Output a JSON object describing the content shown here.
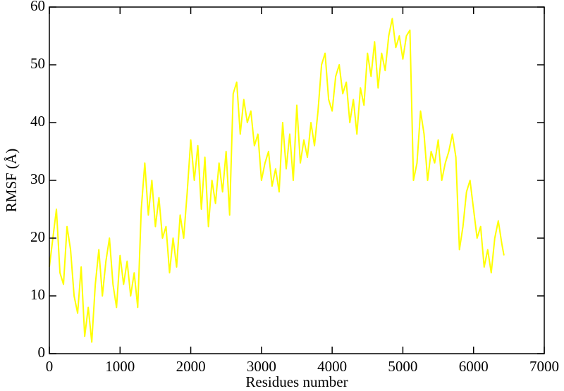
{
  "chart_data": {
    "type": "line",
    "x_label": "Residues number",
    "y_label": "RMSF (Å)",
    "x": [
      0,
      50,
      100,
      150,
      200,
      250,
      300,
      350,
      400,
      450,
      500,
      550,
      600,
      650,
      700,
      750,
      800,
      850,
      900,
      950,
      1000,
      1050,
      1100,
      1150,
      1200,
      1250,
      1300,
      1350,
      1400,
      1450,
      1500,
      1550,
      1600,
      1650,
      1700,
      1750,
      1800,
      1850,
      1900,
      1950,
      2000,
      2050,
      2100,
      2150,
      2200,
      2250,
      2300,
      2350,
      2400,
      2450,
      2500,
      2550,
      2600,
      2650,
      2700,
      2750,
      2800,
      2850,
      2900,
      2950,
      3000,
      3050,
      3100,
      3150,
      3200,
      3250,
      3300,
      3350,
      3400,
      3450,
      3500,
      3550,
      3600,
      3650,
      3700,
      3750,
      3800,
      3850,
      3900,
      3950,
      4000,
      4050,
      4100,
      4150,
      4200,
      4250,
      4300,
      4350,
      4400,
      4450,
      4500,
      4550,
      4600,
      4650,
      4700,
      4750,
      4800,
      4850,
      4900,
      4950,
      5000,
      5050,
      5100,
      5150,
      5200,
      5250,
      5300,
      5350,
      5400,
      5450,
      5500,
      5550,
      5600,
      5650,
      5700,
      5750,
      5800,
      5850,
      5900,
      5950,
      6000,
      6050,
      6100,
      6150,
      6200,
      6250,
      6300,
      6350,
      6400,
      6430
    ],
    "series": [
      {
        "name": "RMSF",
        "color": "#ffff00",
        "values": [
          15,
          20,
          25,
          14,
          12,
          22,
          18,
          10,
          7,
          15,
          3,
          8,
          2,
          12,
          18,
          10,
          16,
          20,
          12,
          8,
          17,
          12,
          16,
          10,
          14,
          8,
          25,
          33,
          24,
          30,
          22,
          27,
          20,
          22,
          14,
          20,
          15,
          24,
          20,
          28,
          37,
          30,
          36,
          25,
          34,
          22,
          30,
          26,
          33,
          28,
          35,
          24,
          45,
          47,
          38,
          44,
          40,
          42,
          36,
          38,
          30,
          33,
          35,
          29,
          32,
          28,
          40,
          32,
          38,
          30,
          43,
          33,
          37,
          34,
          40,
          36,
          42,
          50,
          52,
          44,
          42,
          48,
          50,
          45,
          47,
          40,
          44,
          38,
          46,
          43,
          52,
          48,
          54,
          46,
          52,
          49,
          55,
          58,
          53,
          55,
          51,
          55,
          56,
          30,
          33,
          42,
          38,
          30,
          35,
          33,
          37,
          30,
          33,
          35,
          38,
          34,
          18,
          22,
          28,
          30,
          25,
          20,
          22,
          15,
          18,
          14,
          20,
          23,
          19,
          17
        ]
      }
    ],
    "xlim": [
      0,
      7000
    ],
    "ylim": [
      0,
      60
    ],
    "xticks": [
      0,
      1000,
      2000,
      3000,
      4000,
      5000,
      6000,
      7000
    ],
    "yticks": [
      0,
      10,
      20,
      30,
      40,
      50,
      60
    ]
  }
}
